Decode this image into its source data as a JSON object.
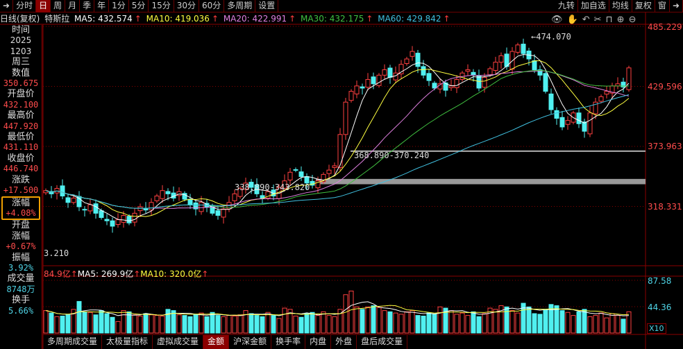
{
  "toolbar": {
    "items": [
      "分时",
      "日",
      "周",
      "月",
      "季",
      "年",
      "1分",
      "5分",
      "15分",
      "30分",
      "60分",
      "多周期",
      "设置"
    ],
    "active": 1,
    "right": [
      "九转",
      "加自选",
      "均线",
      "复权",
      "窗"
    ]
  },
  "info": {
    "period": "日线(复权)",
    "name": "特斯拉",
    "ma5": "MA5: 432.574",
    "ma10": "MA10: 419.036",
    "ma20": "MA20: 422.991",
    "ma30": "MA30: 432.175",
    "ma60": "MA60: 429.842",
    "arrow": "↑"
  },
  "colors": {
    "ma5": "#ffffff",
    "ma10": "#ffff40",
    "ma20": "#e080e0",
    "ma30": "#40c040",
    "ma60": "#40c0e0",
    "up": "#ff4040",
    "down": "#50f0f0"
  },
  "left": {
    "time_label": "时间",
    "year": "2025",
    "date": "1203",
    "weekday": "周三",
    "value_label": "数值",
    "value": "350.675",
    "open_label": "开盘价",
    "open": "432.100",
    "high_label": "最高价",
    "high": "447.920",
    "low_label": "最低价",
    "low": "431.110",
    "close_label": "收盘价",
    "close": "446.740",
    "chg_label": "涨跌",
    "chg": "+17.500",
    "pct_label": "涨幅",
    "pct": "+4.08%",
    "open_pct_label1": "开盘",
    "open_pct_label2": "涨幅",
    "open_pct": "+0.67%",
    "amp_label": "振幅",
    "amp": "3.92%",
    "vol_label": "成交量",
    "vol": "8748万",
    "turn_label": "换手",
    "turn": "5.66%"
  },
  "axis": {
    "price": [
      "485.229",
      "429.596",
      "373.963",
      "318.331"
    ],
    "price_values": [
      485.229,
      429.596,
      373.963,
      318.331
    ],
    "volume": [
      "87.58",
      "44.36"
    ],
    "volume_values": [
      87.58,
      44.36
    ],
    "multiplier": "X10"
  },
  "annotations": {
    "high": "474.070",
    "zone1": "368.890-370.240",
    "zone2": "338.890-343.820",
    "left_low": "3.210"
  },
  "zones": [
    {
      "low": 368.89,
      "high": 370.24
    },
    {
      "low": 338.89,
      "high": 343.82
    }
  ],
  "volhdr": {
    "amount": "84.9亿",
    "ma5": "MA5: 269.9亿",
    "ma10": "MA10: 320.0亿",
    "arrow": "↑"
  },
  "tabs": [
    "多周期成交量",
    "太极量指标",
    "虚拟成交量",
    "金额",
    "沪深金额",
    "换手率",
    "内盘",
    "外盘",
    "盘后成交量"
  ],
  "active_tab": 3,
  "closes": [
    333,
    330,
    335,
    328,
    322,
    326,
    318,
    315,
    320,
    312,
    308,
    305,
    300,
    306,
    310,
    303,
    312,
    318,
    315,
    322,
    328,
    333,
    330,
    326,
    332,
    325,
    320,
    316,
    322,
    318,
    312,
    310,
    316,
    322,
    330,
    335,
    340,
    336,
    330,
    326,
    332,
    328,
    336,
    342,
    350,
    352,
    346,
    340,
    338,
    342,
    348,
    352,
    356,
    385,
    415,
    425,
    430,
    428,
    436,
    432,
    440,
    445,
    438,
    442,
    450,
    455,
    462,
    448,
    440,
    435,
    428,
    432,
    426,
    430,
    436,
    442,
    445,
    440,
    428,
    438,
    446,
    452,
    458,
    448,
    462,
    468,
    460,
    455,
    445,
    440,
    425,
    408,
    400,
    392,
    398,
    405,
    395,
    388,
    405,
    415,
    420,
    425,
    430,
    432,
    429,
    446.74
  ],
  "volumes": [
    38,
    34,
    28,
    29,
    31,
    40,
    53,
    36,
    35,
    31,
    38,
    33,
    27,
    20,
    38,
    36,
    31,
    29,
    33,
    31,
    30,
    29,
    40,
    38,
    31,
    30,
    28,
    32,
    34,
    28,
    35,
    30,
    28,
    30,
    29,
    31,
    38,
    33,
    30,
    28,
    35,
    30,
    25,
    42,
    40,
    29,
    27,
    33,
    35,
    30,
    36,
    30,
    28,
    40,
    64,
    70,
    44,
    40,
    44,
    46,
    43,
    38,
    36,
    34,
    32,
    36,
    38,
    30,
    29,
    34,
    32,
    44,
    42,
    38,
    32,
    34,
    30,
    36,
    28,
    33,
    42,
    40,
    46,
    44,
    38,
    34,
    50,
    44,
    33,
    32,
    40,
    48,
    46,
    38,
    35,
    30,
    36,
    40,
    28,
    30,
    34,
    26,
    33,
    30,
    24,
    36
  ]
}
